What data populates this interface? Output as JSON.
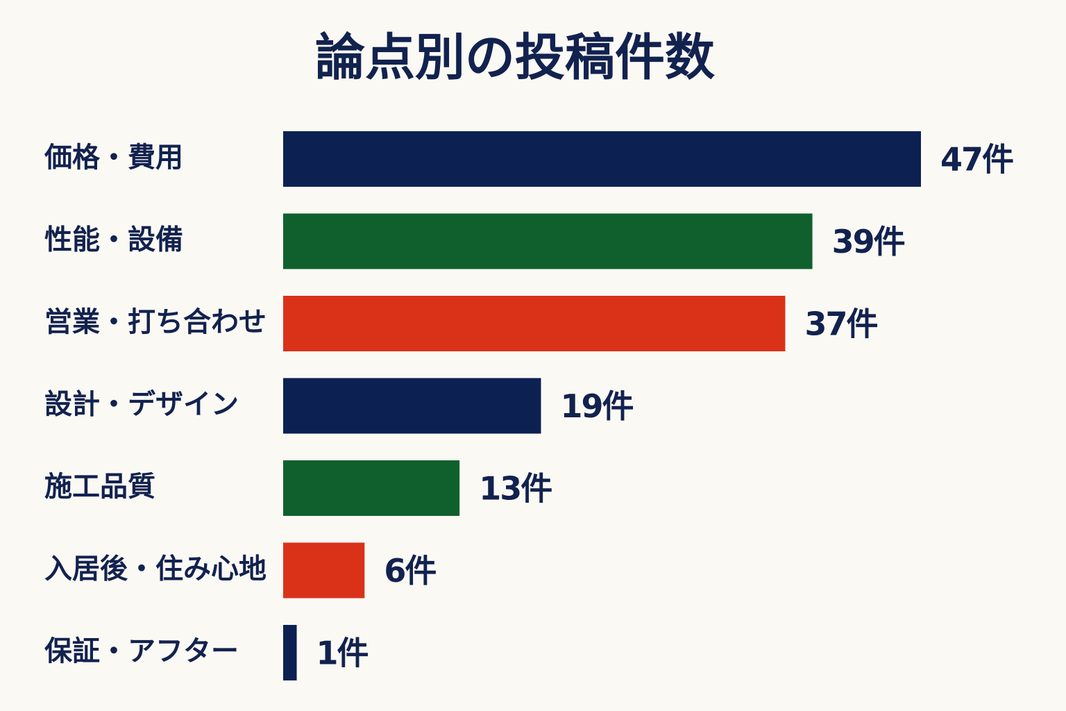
{
  "chart_data": {
    "type": "barh",
    "title": "論点別の投稿件数",
    "categories": [
      "価格・費用",
      "性能・設備",
      "営業・打ち合わせ",
      "設計・デザイン",
      "施工品質",
      "入居後・住み心地",
      "保証・アフター"
    ],
    "values": [
      47,
      39,
      37,
      19,
      13,
      6,
      1
    ],
    "value_labels": [
      "47件",
      "39件",
      "37件",
      "19件",
      "13件",
      "6件",
      "1件"
    ],
    "colors": [
      "#0c2152",
      "#10602e",
      "#d93219",
      "#0c2152",
      "#10602e",
      "#d93219",
      "#0c2152"
    ]
  }
}
